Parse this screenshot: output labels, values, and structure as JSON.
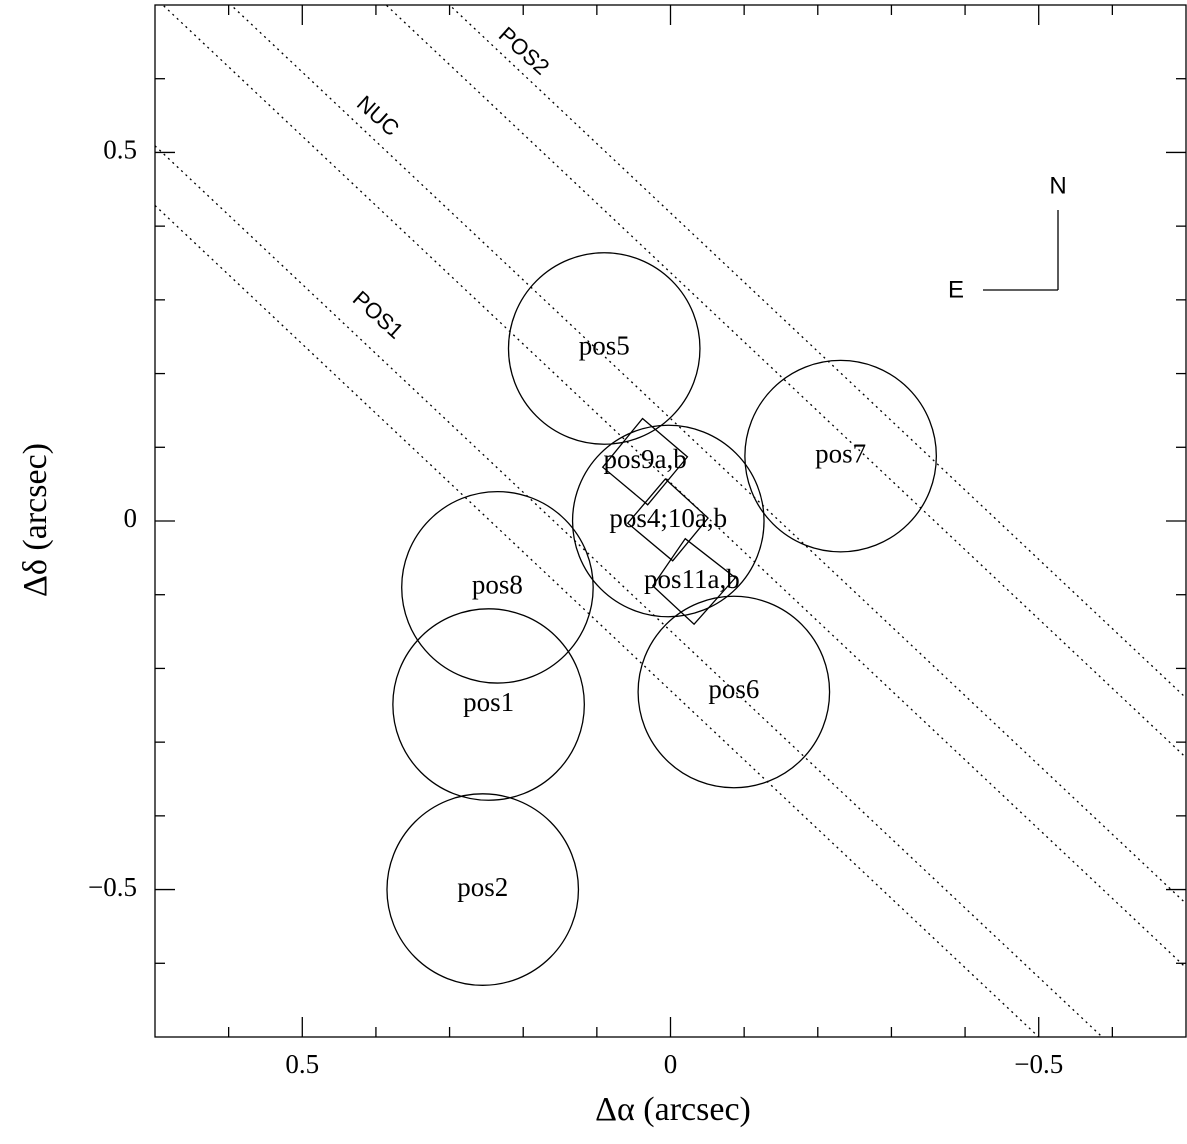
{
  "chart_data": {
    "type": "footprint",
    "xlabel": "Δα (arcsec)",
    "ylabel": "Δδ (arcsec)",
    "xlim": [
      0.7,
      -0.7
    ],
    "ylim": [
      -0.7,
      0.7
    ],
    "xticks": [
      0.5,
      0,
      {
        "value": -0.5,
        "label": "−0.5"
      }
    ],
    "yticks": [
      0.5,
      0,
      {
        "value": -0.5,
        "label": "−0.5"
      }
    ],
    "xminor": [
      0.6,
      0.4,
      0.3,
      0.2,
      0.1,
      -0.1,
      -0.2,
      -0.3,
      -0.4,
      -0.6
    ],
    "yminor": [
      0.6,
      0.4,
      0.3,
      0.2,
      0.1,
      -0.1,
      -0.2,
      -0.3,
      -0.4,
      -0.6
    ],
    "circles": [
      {
        "label": "pos5",
        "x": 0.09,
        "y": 0.234,
        "r": 0.13
      },
      {
        "label": "pos7",
        "x": -0.231,
        "y": 0.088,
        "r": 0.13
      },
      {
        "label": "pos4;10a,b",
        "x": 0.003,
        "y": 0.0,
        "r": 0.13
      },
      {
        "label": "pos8",
        "x": 0.235,
        "y": -0.09,
        "r": 0.13
      },
      {
        "label": "pos1",
        "x": 0.247,
        "y": -0.249,
        "r": 0.13
      },
      {
        "label": "pos6",
        "x": -0.086,
        "y": -0.232,
        "r": 0.13
      },
      {
        "label": "pos2",
        "x": 0.255,
        "y": -0.5,
        "r": 0.13
      }
    ],
    "boxes": [
      {
        "label": "pos9a,b",
        "x": [
          0.038,
          -0.023,
          0.031,
          0.092
        ],
        "y": [
          0.139,
          0.087,
          0.022,
          0.073
        ]
      },
      {
        "x": [
          0.007,
          -0.051,
          -0.003,
          0.058
        ],
        "y": [
          0.057,
          0.004,
          -0.054,
          -0.003
        ]
      },
      {
        "label": "pos11a,b",
        "x": [
          -0.02,
          -0.088,
          -0.032,
          0.024
        ],
        "y": [
          -0.024,
          -0.077,
          -0.14,
          -0.088
        ]
      }
    ],
    "slit_x": [
      0.7,
      -0.7
    ],
    "slits": [
      {
        "values": [
          1.076,
          -0.24
        ]
      },
      {
        "values": [
          0.995,
          -0.321
        ]
      },
      {
        "values": [
          0.797,
          -0.519
        ]
      },
      {
        "values": [
          0.71,
          -0.606
        ]
      },
      {
        "values": [
          0.509,
          -0.807
        ]
      },
      {
        "values": [
          0.428,
          -0.888
        ]
      }
    ],
    "annotations": [
      "POS2",
      "NUC",
      "POS1"
    ],
    "compass": {
      "north": "N",
      "east": "E"
    }
  }
}
